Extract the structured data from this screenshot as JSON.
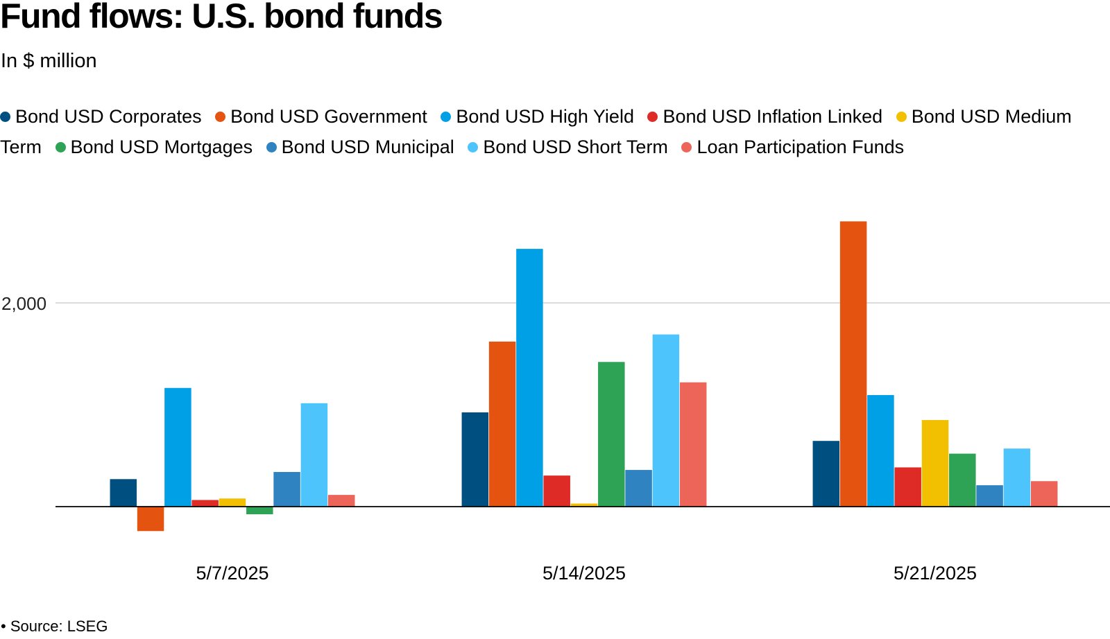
{
  "title": "Fund flows: U.S. bond funds",
  "subtitle": "In $ million",
  "footer": "Source: LSEG",
  "chart_data": {
    "type": "bar",
    "title": "Fund flows: U.S. bond funds",
    "subtitle": "In $ million",
    "xlabel": "",
    "ylabel": "",
    "ylim": [
      -600,
      3000
    ],
    "yticks": [
      2000
    ],
    "ytick_labels": [
      "2,000"
    ],
    "grid": true,
    "legend_position": "top",
    "categories": [
      "5/7/2025",
      "5/14/2025",
      "5/21/2025"
    ],
    "series": [
      {
        "name": "Bond USD Corporates",
        "color": "#004f81",
        "values": [
          270,
          925,
          645
        ]
      },
      {
        "name": "Bond USD Government",
        "color": "#e4530f",
        "values": [
          -240,
          1620,
          2800
        ]
      },
      {
        "name": "Bond USD High Yield",
        "color": "#00a0e6",
        "values": [
          1165,
          2530,
          1095
        ]
      },
      {
        "name": "Bond USD Inflation Linked",
        "color": "#df2b26",
        "values": [
          65,
          305,
          385
        ]
      },
      {
        "name": "Bond USD Medium Term",
        "color": "#f3c001",
        "values": [
          80,
          30,
          850
        ]
      },
      {
        "name": "Bond USD Mortgages",
        "color": "#2ea356",
        "values": [
          -75,
          1420,
          520
        ]
      },
      {
        "name": "Bond USD Municipal",
        "color": "#2f83c0",
        "values": [
          340,
          360,
          210
        ]
      },
      {
        "name": "Bond USD Short Term",
        "color": "#4ec4fd",
        "values": [
          1015,
          1690,
          570
        ]
      },
      {
        "name": "Loan Participation Funds",
        "color": "#ed6458",
        "values": [
          115,
          1220,
          250
        ]
      }
    ]
  }
}
